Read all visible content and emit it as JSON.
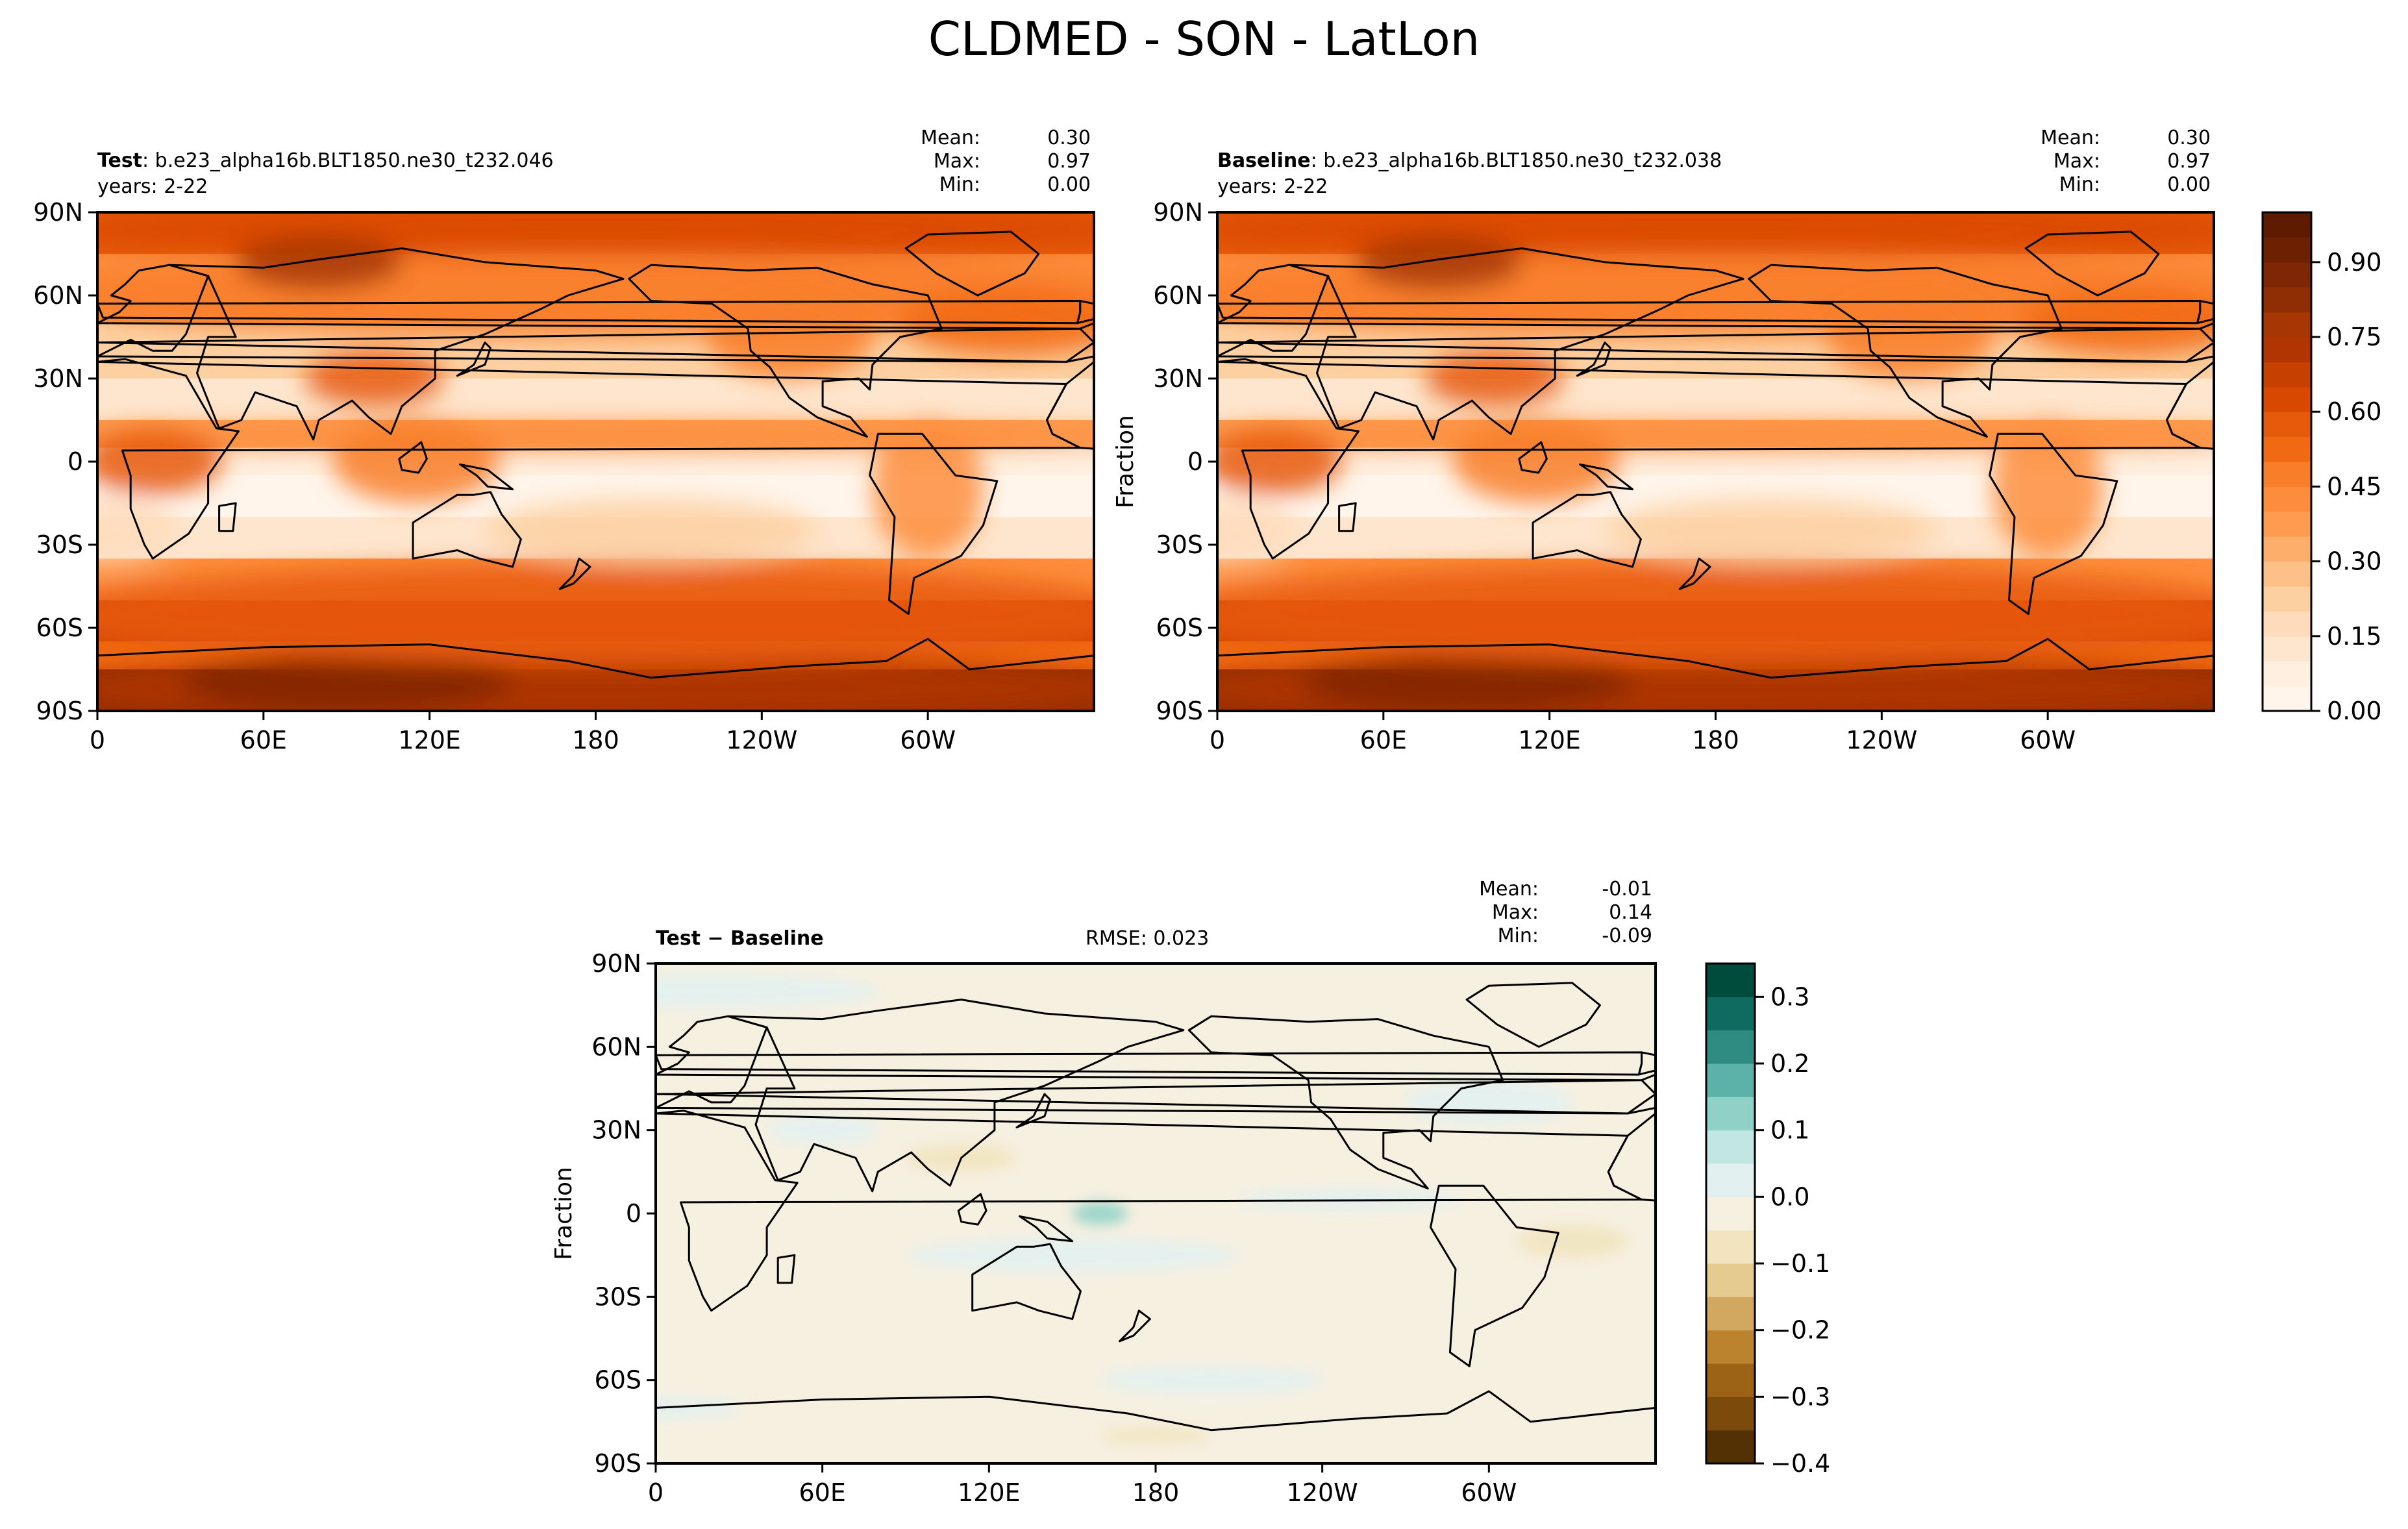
{
  "figure": {
    "title": "CLDMED - SON - LatLon"
  },
  "chart_data": [
    {
      "type": "heatmap",
      "name": "test",
      "label_bold": "Test",
      "label_rest": ": b.e23_alpha16b.BLT1850.ne30_t232.046",
      "years": "years: 2-22",
      "stats": {
        "mean": "0.30",
        "max": "0.97",
        "min": "0.00"
      },
      "ylabel": "",
      "xlim": [
        0,
        360
      ],
      "ylim": [
        -90,
        90
      ],
      "xticks": [
        "0",
        "60E",
        "120E",
        "180",
        "120W",
        "60W"
      ],
      "yticks": [
        "90N",
        "60N",
        "30N",
        "0",
        "30S",
        "60S",
        "90S"
      ],
      "colormap": "Oranges"
    },
    {
      "type": "heatmap",
      "name": "baseline",
      "label_bold": "Baseline",
      "label_rest": ": b.e23_alpha16b.BLT1850.ne30_t232.038",
      "years": "years: 2-22",
      "stats": {
        "mean": "0.30",
        "max": "0.97",
        "min": "0.00"
      },
      "ylabel": "Fraction",
      "xlim": [
        0,
        360
      ],
      "ylim": [
        -90,
        90
      ],
      "xticks": [
        "0",
        "60E",
        "120E",
        "180",
        "120W",
        "60W"
      ],
      "yticks": [
        "90N",
        "60N",
        "30N",
        "0",
        "30S",
        "60S",
        "90S"
      ],
      "colormap": "Oranges",
      "colorbar": {
        "ticks": [
          "0.00",
          "0.15",
          "0.30",
          "0.45",
          "0.60",
          "0.75",
          "0.90"
        ],
        "range": [
          0,
          1.0
        ],
        "levels": 20
      }
    },
    {
      "type": "heatmap",
      "name": "difference",
      "label_bold": "Test − Baseline",
      "rmse": "RMSE: 0.023",
      "stats": {
        "mean": "-0.01",
        "max": " 0.14",
        "min": "-0.09"
      },
      "ylabel": "Fraction",
      "xlim": [
        0,
        360
      ],
      "ylim": [
        -90,
        90
      ],
      "xticks": [
        "0",
        "60E",
        "120E",
        "180",
        "120W",
        "60W"
      ],
      "yticks": [
        "90N",
        "60N",
        "30N",
        "0",
        "30S",
        "60S",
        "90S"
      ],
      "colormap": "BrBG",
      "colorbar": {
        "ticks": [
          "0.3",
          "0.2",
          "0.1",
          "0.0",
          "−0.1",
          "−0.2",
          "−0.3",
          "−0.4"
        ],
        "range": [
          -0.4,
          0.35
        ],
        "levels": 15
      }
    }
  ],
  "palette": {
    "oranges": [
      "#fff5eb",
      "#feefe0",
      "#fee6ce",
      "#fedcbb",
      "#fdd0a2",
      "#fdc088",
      "#fdae6b",
      "#fd9c51",
      "#fd8d3c",
      "#f87e2a",
      "#f16913",
      "#e65a0b",
      "#d94801",
      "#c64001",
      "#b13502",
      "#a63603",
      "#8f2d04",
      "#7f2704",
      "#6d2103",
      "#5e1b02"
    ],
    "brbg": [
      "#543005",
      "#7c4a0a",
      "#9c6216",
      "#bb832e",
      "#d2a860",
      "#e5cb8f",
      "#f1e4bf",
      "#f6f0e1",
      "#e2f1f0",
      "#c2e6e2",
      "#8fd1c6",
      "#5cb1a8",
      "#2f8c83",
      "#0f6b5f",
      "#004c3c"
    ]
  },
  "stat_labels": {
    "mean": "Mean:",
    "max": "Max:",
    "min": "Min:"
  }
}
